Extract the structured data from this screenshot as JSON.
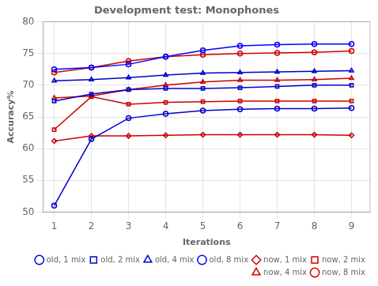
{
  "chart_data": {
    "type": "line",
    "title": "Development test: Monophones",
    "x_label": "Iterations",
    "y_label": "Accuracy%",
    "x": [
      1,
      2,
      3,
      4,
      5,
      6,
      7,
      8,
      9
    ],
    "xlim": [
      0.7,
      9.5
    ],
    "xticks": [
      1,
      2,
      3,
      4,
      5,
      6,
      7,
      8,
      9
    ],
    "ylim": [
      50,
      80
    ],
    "yticks": [
      50,
      55,
      60,
      65,
      70,
      75,
      80
    ],
    "grid": true,
    "legend": "lower right",
    "series": [
      {
        "name": "old, 1 mix",
        "color": "#0000cc",
        "marker": "circle",
        "values": [
          51.0,
          61.5,
          64.8,
          65.5,
          66.0,
          66.2,
          66.3,
          66.3,
          66.4
        ]
      },
      {
        "name": "old, 2 mix",
        "color": "#0000cc",
        "marker": "square",
        "values": [
          67.5,
          68.6,
          69.3,
          69.5,
          69.5,
          69.6,
          69.8,
          70.0,
          70.0
        ]
      },
      {
        "name": "old, 4 mix",
        "color": "#0000cc",
        "marker": "triangle",
        "values": [
          70.7,
          70.9,
          71.2,
          71.6,
          71.9,
          72.0,
          72.1,
          72.2,
          72.3
        ]
      },
      {
        "name": "old, 8 mix",
        "color": "#0000ff",
        "marker": "circle",
        "values": [
          72.5,
          72.8,
          73.3,
          74.5,
          75.5,
          76.2,
          76.4,
          76.5,
          76.5
        ]
      },
      {
        "name": "now, 1 mix",
        "color": "#cc0000",
        "marker": "diamond",
        "values": [
          61.2,
          62.0,
          62.0,
          62.1,
          62.2,
          62.2,
          62.2,
          62.2,
          62.1
        ]
      },
      {
        "name": "now, 2 mix",
        "color": "#cc0000",
        "marker": "square",
        "values": [
          63.0,
          68.2,
          67.0,
          67.3,
          67.4,
          67.5,
          67.5,
          67.5,
          67.5
        ]
      },
      {
        "name": "now, 4 mix",
        "color": "#cc0000",
        "marker": "triangle",
        "values": [
          68.0,
          68.3,
          69.3,
          70.0,
          70.5,
          70.8,
          70.8,
          70.9,
          71.1
        ]
      },
      {
        "name": "now, 8 mix",
        "color": "#cc0000",
        "marker": "circle",
        "values": [
          72.0,
          72.8,
          73.8,
          74.5,
          74.8,
          75.0,
          75.1,
          75.2,
          75.4
        ]
      }
    ]
  }
}
